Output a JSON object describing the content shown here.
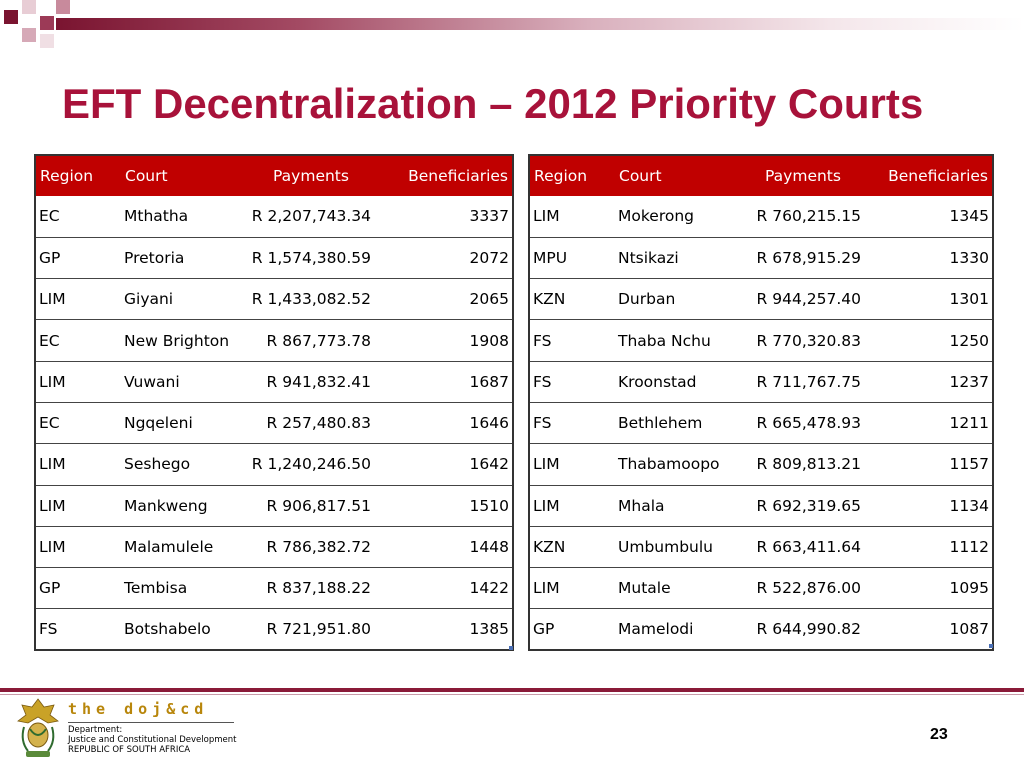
{
  "slide": {
    "title": "EFT Decentralization – 2012 Priority Courts",
    "page_number": "23"
  },
  "columns": {
    "region": "Region",
    "court": "Court",
    "payments": "Payments",
    "beneficiaries": "Beneficiaries"
  },
  "left_table": [
    {
      "region": "EC",
      "court": "Mthatha",
      "payments": "R 2,207,743.34",
      "beneficiaries": "3337"
    },
    {
      "region": "GP",
      "court": "Pretoria",
      "payments": "R 1,574,380.59",
      "beneficiaries": "2072"
    },
    {
      "region": "LIM",
      "court": "Giyani",
      "payments": "R 1,433,082.52",
      "beneficiaries": "2065"
    },
    {
      "region": "EC",
      "court": "New Brighton",
      "payments": "R 867,773.78",
      "beneficiaries": "1908"
    },
    {
      "region": "LIM",
      "court": "Vuwani",
      "payments": "R 941,832.41",
      "beneficiaries": "1687"
    },
    {
      "region": "EC",
      "court": "Ngqeleni",
      "payments": "R 257,480.83",
      "beneficiaries": "1646"
    },
    {
      "region": "LIM",
      "court": "Seshego",
      "payments": "R 1,240,246.50",
      "beneficiaries": "1642"
    },
    {
      "region": "LIM",
      "court": "Mankweng",
      "payments": "R 906,817.51",
      "beneficiaries": "1510"
    },
    {
      "region": "LIM",
      "court": "Malamulele",
      "payments": "R 786,382.72",
      "beneficiaries": "1448"
    },
    {
      "region": "GP",
      "court": "Tembisa",
      "payments": "R 837,188.22",
      "beneficiaries": "1422"
    },
    {
      "region": "FS",
      "court": "Botshabelo",
      "payments": "R 721,951.80",
      "beneficiaries": "1385"
    }
  ],
  "right_table": [
    {
      "region": "LIM",
      "court": "Mokerong",
      "payments": "R 760,215.15",
      "beneficiaries": "1345"
    },
    {
      "region": "MPU",
      "court": "Ntsikazi",
      "payments": "R 678,915.29",
      "beneficiaries": "1330"
    },
    {
      "region": "KZN",
      "court": "Durban",
      "payments": "R 944,257.40",
      "beneficiaries": "1301"
    },
    {
      "region": "FS",
      "court": "Thaba Nchu",
      "payments": "R 770,320.83",
      "beneficiaries": "1250"
    },
    {
      "region": "FS",
      "court": "Kroonstad",
      "payments": "R 711,767.75",
      "beneficiaries": "1237"
    },
    {
      "region": "FS",
      "court": "Bethlehem",
      "payments": "R 665,478.93",
      "beneficiaries": "1211"
    },
    {
      "region": "LIM",
      "court": "Thabamoopo",
      "payments": "R 809,813.21",
      "beneficiaries": "1157"
    },
    {
      "region": "LIM",
      "court": "Mhala",
      "payments": "R 692,319.65",
      "beneficiaries": "1134"
    },
    {
      "region": "KZN",
      "court": "Umbumbulu",
      "payments": "R 663,411.64",
      "beneficiaries": "1112"
    },
    {
      "region": "LIM",
      "court": "Mutale",
      "payments": "R 522,876.00",
      "beneficiaries": "1095"
    },
    {
      "region": "GP",
      "court": "Mamelodi",
      "payments": "R 644,990.82",
      "beneficiaries": "1087"
    }
  ],
  "footer": {
    "brand": "the doj&cd",
    "dept_line1": "Department:",
    "dept_line2": "Justice and Constitutional Development",
    "dept_line3": "REPUBLIC OF SOUTH AFRICA",
    "crest_icon": "coat-of-arms-icon"
  },
  "colors": {
    "title": "#a8123a",
    "header_bg": "#c00000",
    "accent": "#8a1a38"
  }
}
